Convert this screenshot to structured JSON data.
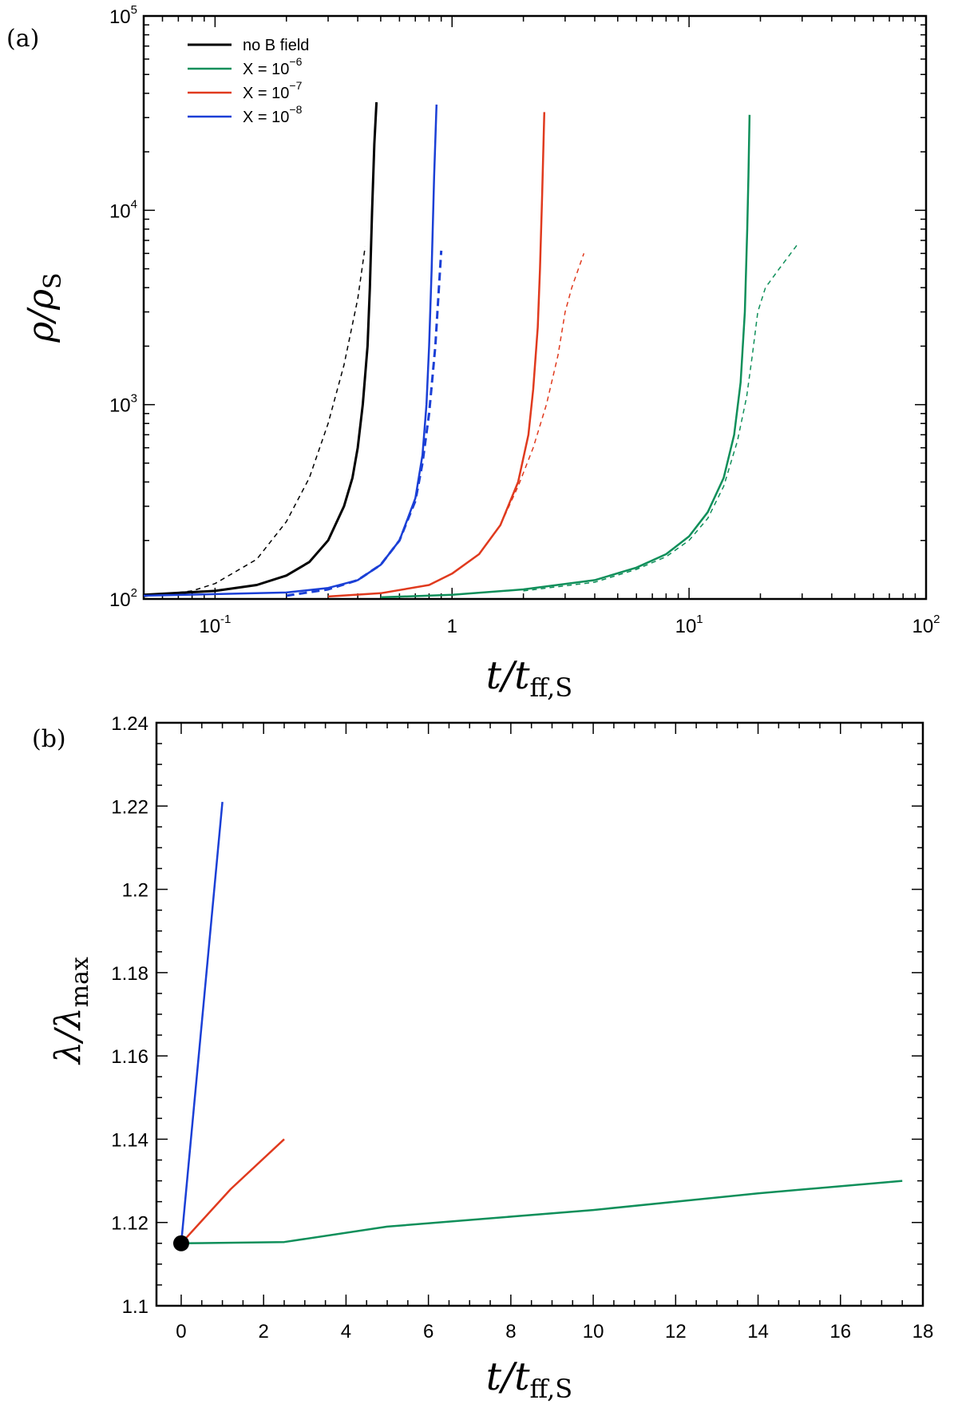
{
  "chart_data": [
    {
      "panel": "(a)",
      "type": "line",
      "xscale": "log",
      "yscale": "log",
      "xlim": [
        0.05,
        100
      ],
      "ylim": [
        100,
        100000
      ],
      "xlabel": "t/t_ff,S",
      "xlabel_main": "t/t",
      "xlabel_sub": "ff,S",
      "ylabel": "ρ/ρ_S",
      "ylabel_main": "ρ/ρ",
      "ylabel_sub": "S",
      "xticks": [
        {
          "value": 0.1,
          "base": "10",
          "exp": "-1"
        },
        {
          "value": 1,
          "base": "1",
          "exp": ""
        },
        {
          "value": 10,
          "base": "10",
          "exp": "1"
        },
        {
          "value": 100,
          "base": "10",
          "exp": "2"
        }
      ],
      "yticks": [
        {
          "value": 100,
          "base": "10",
          "exp": "2"
        },
        {
          "value": 1000,
          "base": "10",
          "exp": "3"
        },
        {
          "value": 10000,
          "base": "10",
          "exp": "4"
        },
        {
          "value": 100000,
          "base": "10",
          "exp": "5"
        }
      ],
      "legend_position": "top-left",
      "series": [
        {
          "name": "no B field",
          "legend_base": "no B field",
          "legend_exp": "",
          "color": "#000000",
          "style": "solid",
          "width": 3,
          "points": [
            [
              0.05,
              105
            ],
            [
              0.1,
              110
            ],
            [
              0.15,
              118
            ],
            [
              0.2,
              132
            ],
            [
              0.25,
              155
            ],
            [
              0.3,
              200
            ],
            [
              0.35,
              300
            ],
            [
              0.38,
              420
            ],
            [
              0.4,
              600
            ],
            [
              0.42,
              1000
            ],
            [
              0.44,
              2000
            ],
            [
              0.45,
              4000
            ],
            [
              0.46,
              10000
            ],
            [
              0.47,
              22000
            ],
            [
              0.48,
              36000
            ]
          ]
        },
        {
          "name": "no B field (dashed)",
          "legend_base": "",
          "legend_exp": "",
          "color": "#000000",
          "style": "dashed",
          "width": 1.5,
          "points": [
            [
              0.05,
              103
            ],
            [
              0.08,
              110
            ],
            [
              0.1,
              120
            ],
            [
              0.15,
              160
            ],
            [
              0.2,
              250
            ],
            [
              0.25,
              420
            ],
            [
              0.3,
              800
            ],
            [
              0.35,
              1600
            ],
            [
              0.4,
              3500
            ],
            [
              0.43,
              6500
            ]
          ]
        },
        {
          "name": "X = 10^-8",
          "legend_base": "X = 10",
          "legend_exp": "−8",
          "color": "#1a3fd6",
          "style": "solid",
          "width": 2.5,
          "points": [
            [
              0.05,
              104
            ],
            [
              0.2,
              108
            ],
            [
              0.3,
              114
            ],
            [
              0.4,
              125
            ],
            [
              0.5,
              150
            ],
            [
              0.6,
              200
            ],
            [
              0.7,
              330
            ],
            [
              0.75,
              550
            ],
            [
              0.78,
              1000
            ],
            [
              0.8,
              2000
            ],
            [
              0.82,
              5000
            ],
            [
              0.84,
              15000
            ],
            [
              0.86,
              35000
            ]
          ]
        },
        {
          "name": "X = 10^-8 (dashed)",
          "legend_base": "",
          "legend_exp": "",
          "color": "#1a3fd6",
          "style": "dashed",
          "width": 3,
          "points": [
            [
              0.2,
              104
            ],
            [
              0.3,
              112
            ],
            [
              0.4,
              125
            ],
            [
              0.5,
              150
            ],
            [
              0.6,
              200
            ],
            [
              0.7,
              320
            ],
            [
              0.75,
              500
            ],
            [
              0.8,
              900
            ],
            [
              0.85,
              2000
            ],
            [
              0.88,
              4000
            ],
            [
              0.9,
              6200
            ]
          ]
        },
        {
          "name": "X = 10^-7",
          "legend_base": "X = 10",
          "legend_exp": "−7",
          "color": "#e03a1e",
          "style": "solid",
          "width": 2.5,
          "points": [
            [
              0.3,
              103
            ],
            [
              0.5,
              107
            ],
            [
              0.8,
              118
            ],
            [
              1.0,
              135
            ],
            [
              1.3,
              170
            ],
            [
              1.6,
              240
            ],
            [
              1.9,
              400
            ],
            [
              2.1,
              700
            ],
            [
              2.2,
              1200
            ],
            [
              2.3,
              2500
            ],
            [
              2.35,
              5000
            ],
            [
              2.4,
              12000
            ],
            [
              2.45,
              32000
            ]
          ]
        },
        {
          "name": "X = 10^-7 (dashed)",
          "legend_base": "",
          "legend_exp": "",
          "color": "#e03a1e",
          "style": "dashed",
          "width": 1.5,
          "points": [
            [
              1.0,
              135
            ],
            [
              1.3,
              170
            ],
            [
              1.6,
              240
            ],
            [
              1.9,
              380
            ],
            [
              2.2,
              600
            ],
            [
              2.5,
              1000
            ],
            [
              2.8,
              1800
            ],
            [
              3.0,
              3000
            ],
            [
              3.2,
              4000
            ],
            [
              3.6,
              6000
            ]
          ]
        },
        {
          "name": "X = 10^-6",
          "legend_base": "X = 10",
          "legend_exp": "−6",
          "color": "#0f8f5a",
          "style": "solid",
          "width": 2.5,
          "points": [
            [
              0.5,
              102
            ],
            [
              1,
              105
            ],
            [
              2,
              112
            ],
            [
              4,
              125
            ],
            [
              6,
              145
            ],
            [
              8,
              170
            ],
            [
              10,
              210
            ],
            [
              12,
              280
            ],
            [
              14,
              420
            ],
            [
              15.5,
              700
            ],
            [
              16.5,
              1300
            ],
            [
              17.2,
              3000
            ],
            [
              17.6,
              8000
            ],
            [
              17.8,
              15000
            ],
            [
              18,
              31000
            ]
          ]
        },
        {
          "name": "X = 10^-6 (dashed)",
          "legend_base": "",
          "legend_exp": "",
          "color": "#0f8f5a",
          "style": "dashed",
          "width": 1.5,
          "points": [
            [
              2,
              110
            ],
            [
              4,
              122
            ],
            [
              6,
              142
            ],
            [
              8,
              165
            ],
            [
              10,
              200
            ],
            [
              12,
              260
            ],
            [
              14,
              380
            ],
            [
              16,
              650
            ],
            [
              17.5,
              1100
            ],
            [
              18.5,
              1800
            ],
            [
              19.5,
              3000
            ],
            [
              21,
              4000
            ],
            [
              24,
              5000
            ],
            [
              29,
              6800
            ]
          ]
        }
      ]
    },
    {
      "panel": "(b)",
      "type": "line",
      "xscale": "linear",
      "yscale": "linear",
      "xlim": [
        -0.6,
        18
      ],
      "ylim": [
        1.1,
        1.24
      ],
      "xlabel": "t/t_ff,S",
      "xlabel_main": "t/t",
      "xlabel_sub": "ff,S",
      "ylabel": "λ/λ_max",
      "ylabel_main": "λ/λ",
      "ylabel_sub": "max",
      "xticks": [
        {
          "value": 0,
          "label": "0"
        },
        {
          "value": 2,
          "label": "2"
        },
        {
          "value": 4,
          "label": "4"
        },
        {
          "value": 6,
          "label": "6"
        },
        {
          "value": 8,
          "label": "8"
        },
        {
          "value": 10,
          "label": "10"
        },
        {
          "value": 12,
          "label": "12"
        },
        {
          "value": 14,
          "label": "14"
        },
        {
          "value": 16,
          "label": "16"
        },
        {
          "value": 18,
          "label": "18"
        }
      ],
      "yticks": [
        {
          "value": 1.1,
          "label": "1.1"
        },
        {
          "value": 1.12,
          "label": "1.12"
        },
        {
          "value": 1.14,
          "label": "1.14"
        },
        {
          "value": 1.16,
          "label": "1.16"
        },
        {
          "value": 1.18,
          "label": "1.18"
        },
        {
          "value": 1.2,
          "label": "1.2"
        },
        {
          "value": 1.22,
          "label": "1.22"
        },
        {
          "value": 1.24,
          "label": "1.24"
        }
      ],
      "start_point": {
        "x": 0,
        "y": 1.115
      },
      "series": [
        {
          "name": "X = 10^-8",
          "color": "#1a3fd6",
          "points": [
            [
              0,
              1.115
            ],
            [
              1.0,
              1.221
            ]
          ]
        },
        {
          "name": "X = 10^-7",
          "color": "#e03a1e",
          "points": [
            [
              0,
              1.115
            ],
            [
              1.2,
              1.128
            ],
            [
              2.5,
              1.14
            ]
          ]
        },
        {
          "name": "X = 10^-6",
          "color": "#0f8f5a",
          "points": [
            [
              0,
              1.115
            ],
            [
              2.5,
              1.1153
            ],
            [
              5,
              1.119
            ],
            [
              10,
              1.123
            ],
            [
              14,
              1.127
            ],
            [
              17.5,
              1.13
            ]
          ]
        }
      ]
    }
  ]
}
